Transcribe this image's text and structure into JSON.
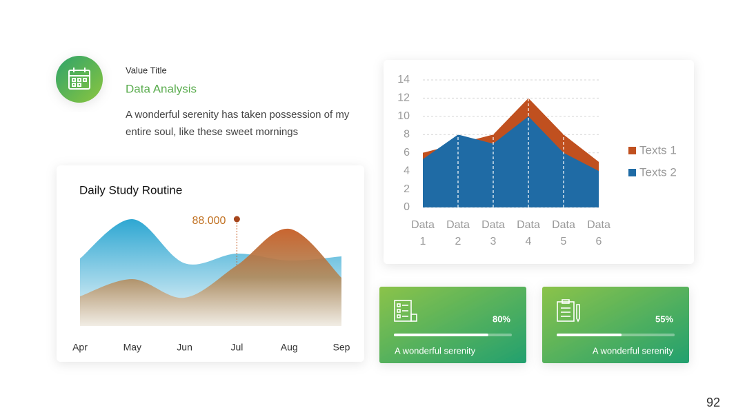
{
  "header": {
    "subtitle": "Value Title",
    "title": "Data Analysis",
    "description": "A wonderful serenity has taken possession of my entire soul, like these sweet mornings"
  },
  "chart_data": [
    {
      "type": "area",
      "title": "Daily Study Routine",
      "smooth": true,
      "categories": [
        "Apr",
        "May",
        "Jun",
        "Jul",
        "Aug",
        "Sep"
      ],
      "series": [
        {
          "color": "#3aabd2",
          "values": [
            98,
            155,
            91,
            105,
            95,
            101
          ]
        },
        {
          "color": "#c4581e",
          "values": [
            43,
            68,
            41,
            88,
            141,
            70
          ],
          "value_labels": [
            null,
            null,
            null,
            "88.000",
            null,
            null
          ]
        }
      ]
    },
    {
      "type": "area",
      "smooth": false,
      "categories": [
        "Data 1",
        "Data 2",
        "Data 3",
        "Data 4",
        "Data 5",
        "Data 6"
      ],
      "series": [
        {
          "name": "Texts 1",
          "color": "#c0501f",
          "values": [
            6,
            7,
            8,
            12,
            8,
            5
          ]
        },
        {
          "name": "Texts 2",
          "color": "#1f6ba5",
          "values": [
            5.3,
            8,
            7,
            10,
            6,
            4
          ]
        }
      ],
      "ylim": [
        0,
        14
      ],
      "yticks": [
        0,
        2,
        4,
        6,
        8,
        10,
        12,
        14
      ],
      "grid": true,
      "legend": "right"
    }
  ],
  "cards": [
    {
      "percent": 80,
      "percent_label": "80%",
      "text": "A wonderful serenity"
    },
    {
      "percent": 55,
      "percent_label": "55%",
      "text": "A wonderful serenity"
    }
  ],
  "page_number": "92"
}
